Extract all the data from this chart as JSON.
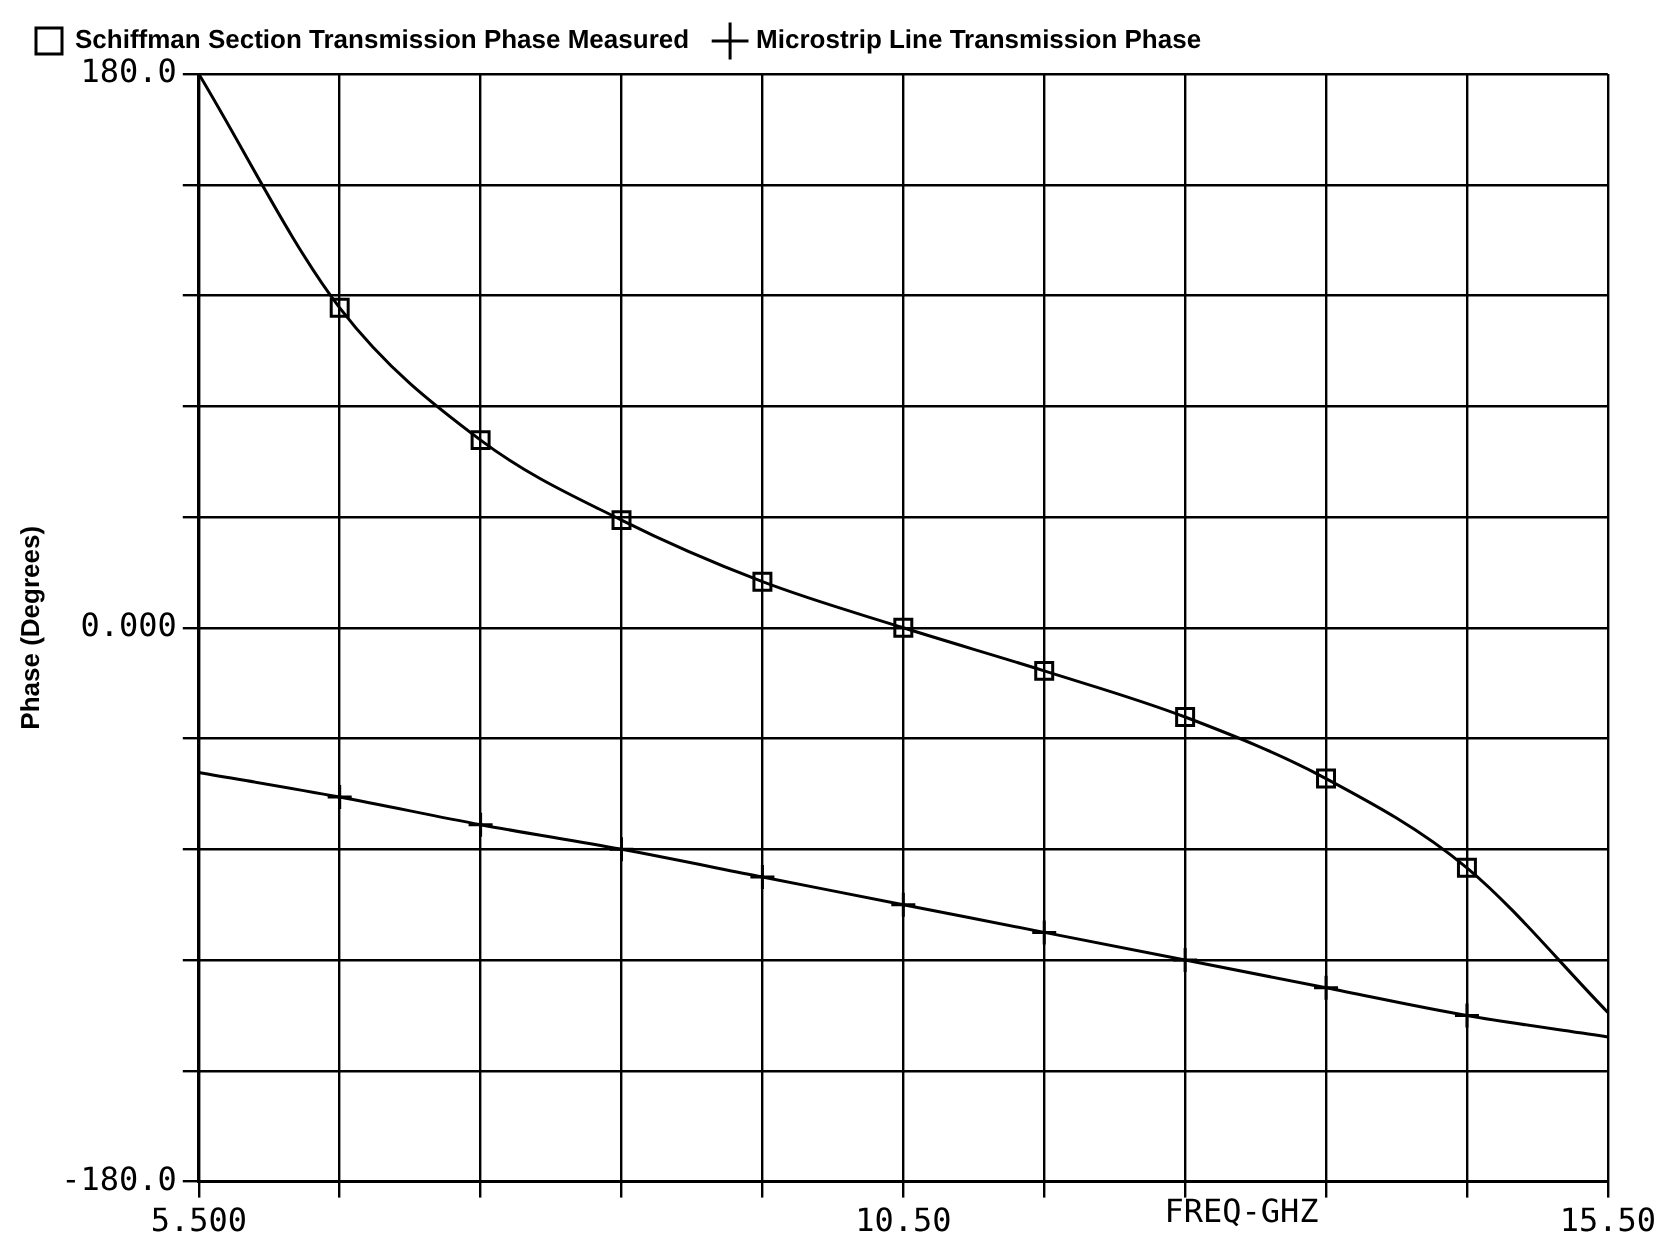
{
  "chart_data": {
    "type": "scatter",
    "ylabel": "Phase (Degrees)",
    "xlabel": "FREQ-GHZ",
    "xlim": [
      5.5,
      15.5
    ],
    "xticks": [
      {
        "value": 5.5,
        "label": "5.500"
      },
      {
        "value": 6.5,
        "label": null
      },
      {
        "value": 7.5,
        "label": null
      },
      {
        "value": 8.5,
        "label": null
      },
      {
        "value": 9.5,
        "label": null
      },
      {
        "value": 10.5,
        "label": "10.50"
      },
      {
        "value": 11.5,
        "label": null
      },
      {
        "value": 12.5,
        "label": null
      },
      {
        "value": 13.5,
        "label": null
      },
      {
        "value": 14.5,
        "label": null
      },
      {
        "value": 15.5,
        "label": "15.50"
      }
    ],
    "ylim": [
      -180,
      180
    ],
    "yticks": [
      {
        "value": -180,
        "label": "-180.0"
      },
      {
        "value": -144,
        "label": null
      },
      {
        "value": -108,
        "label": null
      },
      {
        "value": -72,
        "label": null
      },
      {
        "value": -36,
        "label": null
      },
      {
        "value": 0,
        "label": "0.000"
      },
      {
        "value": 36,
        "label": null
      },
      {
        "value": 72,
        "label": null
      },
      {
        "value": 108,
        "label": null
      },
      {
        "value": 144,
        "label": null
      },
      {
        "value": 180,
        "label": "180.0"
      }
    ],
    "grid": true,
    "legend": "top left",
    "series": [
      {
        "type": "line",
        "marker": "none",
        "color": "#000000",
        "x": [
          5.5,
          6.5,
          7.5,
          8.5,
          9.5,
          10.5,
          11.5,
          12.5,
          13.5,
          14.5,
          15.5
        ],
        "values": [
          180,
          104,
          61,
          35,
          15,
          0,
          -14,
          -29,
          -49,
          -78,
          -125
        ]
      },
      {
        "type": "line",
        "marker": "none",
        "color": "#000000",
        "x": [
          5.5,
          6.5,
          7.5,
          8.5,
          9.5,
          10.5,
          11.5,
          12.5,
          13.5,
          14.5,
          15.5
        ],
        "values": [
          -47,
          -55,
          -64,
          -72,
          -81,
          -90,
          -99,
          -108,
          -117,
          -126,
          -133
        ]
      },
      {
        "type": "scatter",
        "name": "Schiffman Section Transmission Phase Measured",
        "marker": "square",
        "color": "#000000",
        "x": [
          6.5,
          7.5,
          8.5,
          9.5,
          10.5,
          11.5,
          12.5,
          13.5,
          14.5
        ],
        "values": [
          104,
          61,
          35,
          15,
          0,
          -14,
          -29,
          -49,
          -78
        ]
      },
      {
        "type": "scatter",
        "name": "Microstrip Line Transmission Phase",
        "marker": "cross",
        "color": "#000000",
        "x": [
          6.5,
          7.5,
          8.5,
          9.5,
          10.5,
          11.5,
          12.5,
          13.5,
          14.5
        ],
        "values": [
          -55,
          -64,
          -72,
          -81,
          -90,
          -99,
          -108,
          -117,
          -126
        ]
      }
    ]
  }
}
